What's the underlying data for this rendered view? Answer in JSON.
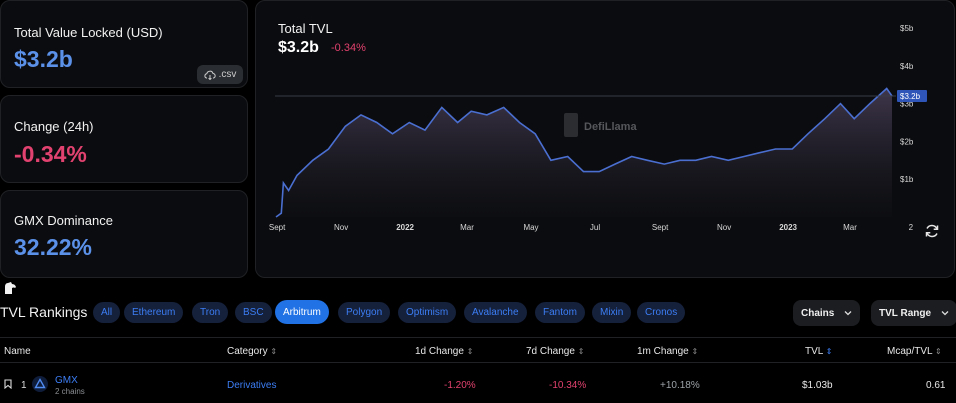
{
  "stats": {
    "tvl": {
      "label": "Total Value Locked (USD)",
      "value": "$3.2b",
      "csv_label": ".csv"
    },
    "change": {
      "label": "Change (24h)",
      "value": "-0.34%"
    },
    "dominance": {
      "label": "GMX Dominance",
      "value": "32.22%"
    }
  },
  "chart": {
    "title": "Total TVL",
    "value": "$3.2b",
    "change": "-0.34%",
    "watermark": "DefiLlama",
    "current_tag": "$3.2b",
    "y_ticks": [
      "$5b",
      "$4b",
      "$3b",
      "$2b",
      "$1b"
    ],
    "x_ticks": [
      "Sept",
      "Nov",
      "2022",
      "Mar",
      "May",
      "Jul",
      "Sept",
      "Nov",
      "2023",
      "Mar",
      "2"
    ]
  },
  "chart_data": {
    "type": "area",
    "title": "Total TVL",
    "ylim": [
      0,
      5
    ],
    "y_unit": "b USD",
    "x_range": [
      "2021-09",
      "2023-04"
    ],
    "series": [
      {
        "values": [
          [
            "2021-08-31",
            0.0
          ],
          [
            "2021-09-05",
            0.1
          ],
          [
            "2021-09-07",
            0.9
          ],
          [
            "2021-09-12",
            0.7
          ],
          [
            "2021-09-20",
            1.1
          ],
          [
            "2021-10-05",
            1.5
          ],
          [
            "2021-10-20",
            1.8
          ],
          [
            "2021-11-05",
            2.4
          ],
          [
            "2021-11-20",
            2.7
          ],
          [
            "2021-12-05",
            2.5
          ],
          [
            "2021-12-20",
            2.2
          ],
          [
            "2022-01-05",
            2.5
          ],
          [
            "2022-01-20",
            2.3
          ],
          [
            "2022-02-05",
            2.9
          ],
          [
            "2022-02-20",
            2.5
          ],
          [
            "2022-03-05",
            2.8
          ],
          [
            "2022-03-20",
            2.7
          ],
          [
            "2022-04-05",
            2.9
          ],
          [
            "2022-04-20",
            2.5
          ],
          [
            "2022-05-05",
            2.2
          ],
          [
            "2022-05-20",
            1.5
          ],
          [
            "2022-06-05",
            1.6
          ],
          [
            "2022-06-20",
            1.2
          ],
          [
            "2022-07-05",
            1.2
          ],
          [
            "2022-07-20",
            1.4
          ],
          [
            "2022-08-05",
            1.6
          ],
          [
            "2022-08-20",
            1.5
          ],
          [
            "2022-09-05",
            1.4
          ],
          [
            "2022-09-20",
            1.5
          ],
          [
            "2022-10-05",
            1.5
          ],
          [
            "2022-10-20",
            1.6
          ],
          [
            "2022-11-05",
            1.5
          ],
          [
            "2022-11-20",
            1.6
          ],
          [
            "2022-12-05",
            1.7
          ],
          [
            "2022-12-20",
            1.8
          ],
          [
            "2023-01-05",
            1.8
          ],
          [
            "2023-01-20",
            2.2
          ],
          [
            "2023-02-05",
            2.6
          ],
          [
            "2023-02-20",
            3.0
          ],
          [
            "2023-03-05",
            2.6
          ],
          [
            "2023-03-20",
            3.0
          ],
          [
            "2023-04-05",
            3.4
          ],
          [
            "2023-04-10",
            3.2
          ]
        ]
      }
    ]
  },
  "rankings": {
    "title": "TVL Rankings",
    "chips": [
      "All",
      "Ethereum",
      "Tron",
      "BSC",
      "Arbitrum",
      "Polygon",
      "Optimism",
      "Avalanche",
      "Fantom",
      "Mixin",
      "Cronos"
    ],
    "active_chip": "Arbitrum",
    "chains_btn": "Chains",
    "range_btn": "TVL Range",
    "columns": [
      "Name",
      "Category",
      "1d Change",
      "7d Change",
      "1m Change",
      "TVL",
      "Mcap/TVL"
    ],
    "rows": [
      {
        "rank": "1",
        "name": "GMX",
        "sub": "2 chains",
        "category": "Derivatives",
        "d1": "-1.20%",
        "d7": "-10.34%",
        "m1": "+10.18%",
        "tvl": "$1.03b",
        "mcap": "0.61"
      }
    ]
  },
  "colors": {
    "accent": "#2172e5",
    "negative": "#e2426f",
    "positive": "#9da3a8",
    "value_blue": "#5b91e8"
  }
}
